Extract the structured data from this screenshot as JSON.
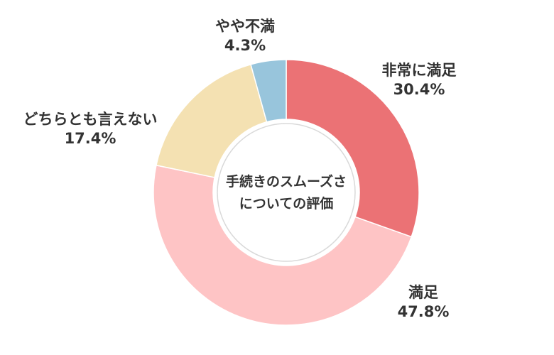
{
  "chart_data": {
    "type": "pie",
    "center_label": [
      "手続きのスムーズさ",
      "についての評価"
    ],
    "slices": [
      {
        "label": "非常に満足",
        "value": 30.4,
        "value_label": "30.4%",
        "color": "#EB7275"
      },
      {
        "label": "満足",
        "value": 47.8,
        "value_label": "47.8%",
        "color": "#FEC4C5"
      },
      {
        "label": "どちらとも言えない",
        "value": 17.4,
        "value_label": "17.4%",
        "color": "#F4E1B2"
      },
      {
        "label": "やや不満",
        "value": 4.3,
        "value_label": "4.3%",
        "color": "#98C5DC"
      }
    ],
    "legend": "none",
    "start_angle_deg": 0,
    "direction": "clockwise",
    "donut": true
  }
}
